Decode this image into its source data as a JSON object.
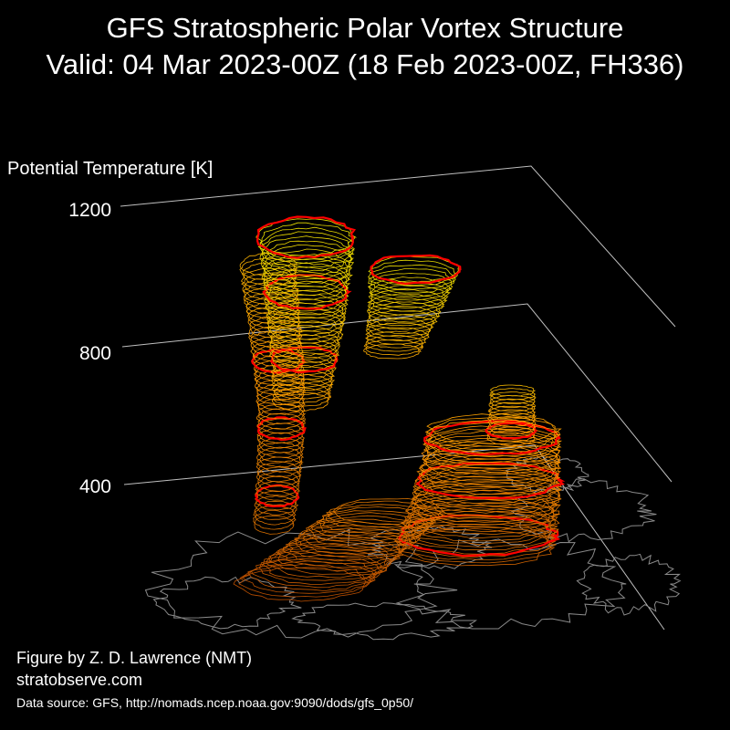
{
  "header": {
    "title_line1": "GFS Stratospheric Polar Vortex Structure",
    "title_line2": "Valid: 04 Mar 2023-00Z  (18 Feb 2023-00Z, FH336)"
  },
  "footer": {
    "credit": "Figure by Z. D. Lawrence (NMT)",
    "website": "stratobserve.com",
    "data_source": "Data source: GFS, http://nomads.ncep.noaa.gov:9090/dods/gfs_0p50/"
  },
  "chart_data": {
    "type": "3d-isosurface",
    "zlabel": "Potential Temperature [K]",
    "zticks": [
      400,
      800,
      1200
    ],
    "zlim": [
      350,
      1200
    ],
    "background": "#000000",
    "colors": {
      "contour_low": "#b34700",
      "contour_mid": "#ff9900",
      "contour_high": "#e6e600",
      "highlight": "#ff0000",
      "coastline": "#8a8a8a",
      "axis_lines": "#bfbfbf"
    },
    "vortex_lobes": [
      {
        "name": "",
        "z_min": 350,
        "z_max": 1200
      },
      {
        "name": "",
        "z_min": 800,
        "z_max": 1050
      },
      {
        "name": "",
        "z_min": 350,
        "z_max": 700
      }
    ]
  }
}
